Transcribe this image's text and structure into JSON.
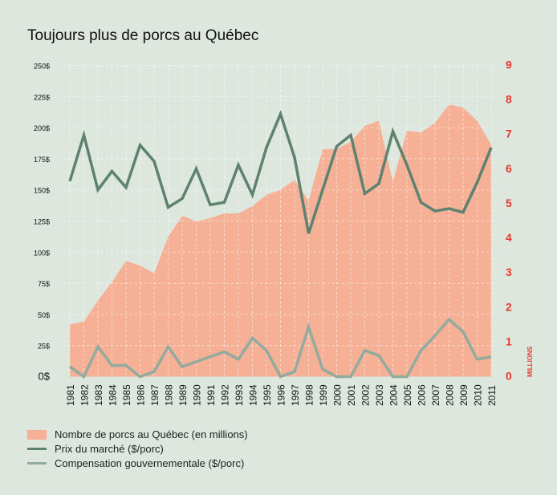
{
  "chart_data": {
    "type": "area+line",
    "title": "Toujours plus de porcs au Québec",
    "x": [
      1981,
      1982,
      1983,
      1984,
      1985,
      1986,
      1987,
      1988,
      1989,
      1990,
      1991,
      1992,
      1993,
      1994,
      1995,
      1996,
      1997,
      1998,
      1999,
      2000,
      2001,
      2002,
      2003,
      2004,
      2005,
      2006,
      2007,
      2008,
      2009,
      2010,
      2011
    ],
    "x_tick_labels": [
      "1981",
      "1982",
      "1983",
      "1984",
      "1985",
      "1986",
      "1987",
      "1988",
      "1989",
      "1990",
      "1991",
      "1992",
      "1993",
      "1994",
      "1995",
      "1996",
      "1997",
      "1998",
      "1999",
      "2000",
      "2001",
      "2002",
      "2003",
      "2004",
      "2005",
      "2006",
      "2007",
      "2008",
      "2009",
      "2010",
      "2011"
    ],
    "left_axis": {
      "ylim": [
        0,
        250
      ],
      "ticks": [
        "0$",
        "25$",
        "50$",
        "75$",
        "100$",
        "125$",
        "150$",
        "175$",
        "200$",
        "225$",
        "250$"
      ]
    },
    "right_axis": {
      "label": "MILLIONS",
      "ylim": [
        0,
        9
      ],
      "ticks": [
        "0",
        "1",
        "2",
        "3",
        "4",
        "5",
        "6",
        "7",
        "8",
        "9"
      ]
    },
    "grid": true,
    "legend_position": "bottom-left",
    "series": [
      {
        "name": "Nombre de porcs au Québec (en millions)",
        "type": "area",
        "axis": "right",
        "color": "#f5b096",
        "values": [
          1.51,
          1.59,
          2.2,
          2.73,
          3.35,
          3.21,
          2.99,
          4.04,
          4.65,
          4.49,
          4.58,
          4.72,
          4.72,
          4.93,
          5.26,
          5.4,
          5.69,
          5.09,
          6.57,
          6.59,
          6.79,
          7.25,
          7.4,
          5.63,
          7.11,
          7.06,
          7.34,
          7.87,
          7.78,
          7.4,
          6.71
        ]
      },
      {
        "name": "Prix du marché ($/porc)",
        "type": "line",
        "axis": "left",
        "color": "#5e8270",
        "values": [
          157,
          194,
          150,
          165,
          152,
          186,
          173,
          136,
          143,
          167,
          138,
          140,
          170,
          146,
          184,
          211,
          176,
          115,
          150,
          185,
          194,
          147,
          155,
          197,
          170,
          140,
          133,
          135,
          132,
          156,
          184
        ]
      },
      {
        "name": "Compensation gouvernementale ($/porc)",
        "type": "line",
        "axis": "left",
        "color": "#93ab9f",
        "values": [
          8,
          0,
          24,
          9,
          9,
          0,
          4,
          24,
          8,
          12,
          16,
          20,
          14,
          31,
          21,
          0,
          4,
          40,
          6,
          0,
          0,
          21,
          17,
          0,
          0,
          21,
          33,
          46,
          36,
          14,
          16
        ]
      }
    ]
  }
}
